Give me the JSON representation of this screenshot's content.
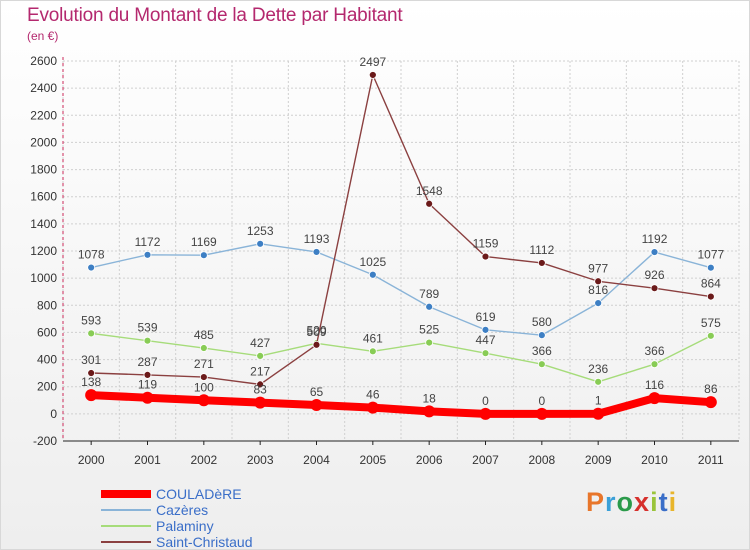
{
  "title": "Evolution du Montant de la Dette par Habitant",
  "subtitle": "(en €)",
  "logo": {
    "text": "Proxiti",
    "colors": [
      "#e8762b",
      "#3aa0d8",
      "#2a9a4a",
      "#d6302c",
      "#9ac43a",
      "#3a6ec8",
      "#e8b52b"
    ]
  },
  "chart_data": {
    "type": "line",
    "title": "Evolution du Montant de la Dette par Habitant",
    "subtitle": "(en €)",
    "xlabel": "",
    "ylabel": "",
    "ylim": [
      -200,
      2600
    ],
    "yticks": [
      -200,
      0,
      200,
      400,
      600,
      800,
      1000,
      1200,
      1400,
      1600,
      1800,
      2000,
      2200,
      2400,
      2600
    ],
    "grid": true,
    "legend_position": "bottom-left",
    "categories": [
      "2000",
      "2001",
      "2002",
      "2003",
      "2004",
      "2005",
      "2006",
      "2007",
      "2008",
      "2009",
      "2010",
      "2011"
    ],
    "series": [
      {
        "name": "COULADèRE",
        "color": "#ff0000",
        "line_color": "#ff0000",
        "marker_color": "#ff0000",
        "width": "thick",
        "values": [
          138,
          119,
          100,
          83,
          65,
          46,
          18,
          0,
          0,
          1,
          116,
          86
        ],
        "labels": [
          "138",
          "119",
          "100",
          "83",
          "65",
          "46",
          "18",
          "0",
          "0",
          "1",
          "116",
          "86"
        ]
      },
      {
        "name": "Cazères",
        "color": "#8ab4d8",
        "line_color": "#8ab4d8",
        "marker_color": "#3d7fc4",
        "width": "thin",
        "values": [
          1078,
          1172,
          1169,
          1253,
          1193,
          1025,
          789,
          619,
          580,
          816,
          1192,
          1077
        ],
        "labels": [
          "1078",
          "1172",
          "1169",
          "1253",
          "1193",
          "1025",
          "789",
          "619",
          "580",
          "816",
          "1192",
          "1077"
        ]
      },
      {
        "name": "Palaminy",
        "color": "#a6dc7a",
        "line_color": "#a6dc7a",
        "marker_color": "#88cc55",
        "width": "thin",
        "values": [
          593,
          539,
          485,
          427,
          520,
          461,
          525,
          447,
          366,
          236,
          366,
          575
        ],
        "labels": [
          "593",
          "539",
          "485",
          "427",
          "520",
          "461",
          "525",
          "447",
          "366",
          "236",
          "366",
          "575"
        ]
      },
      {
        "name": "Saint-Christaud",
        "color": "#8b4040",
        "line_color": "#8b4040",
        "marker_color": "#6b1a1a",
        "width": "thin",
        "values": [
          301,
          287,
          271,
          217,
          509,
          2497,
          1548,
          1159,
          1112,
          977,
          926,
          864
        ],
        "labels": [
          "301",
          "287",
          "271",
          "217",
          "509",
          "2497",
          "1548",
          "1159",
          "1112",
          "977",
          "926",
          "864"
        ]
      }
    ]
  }
}
